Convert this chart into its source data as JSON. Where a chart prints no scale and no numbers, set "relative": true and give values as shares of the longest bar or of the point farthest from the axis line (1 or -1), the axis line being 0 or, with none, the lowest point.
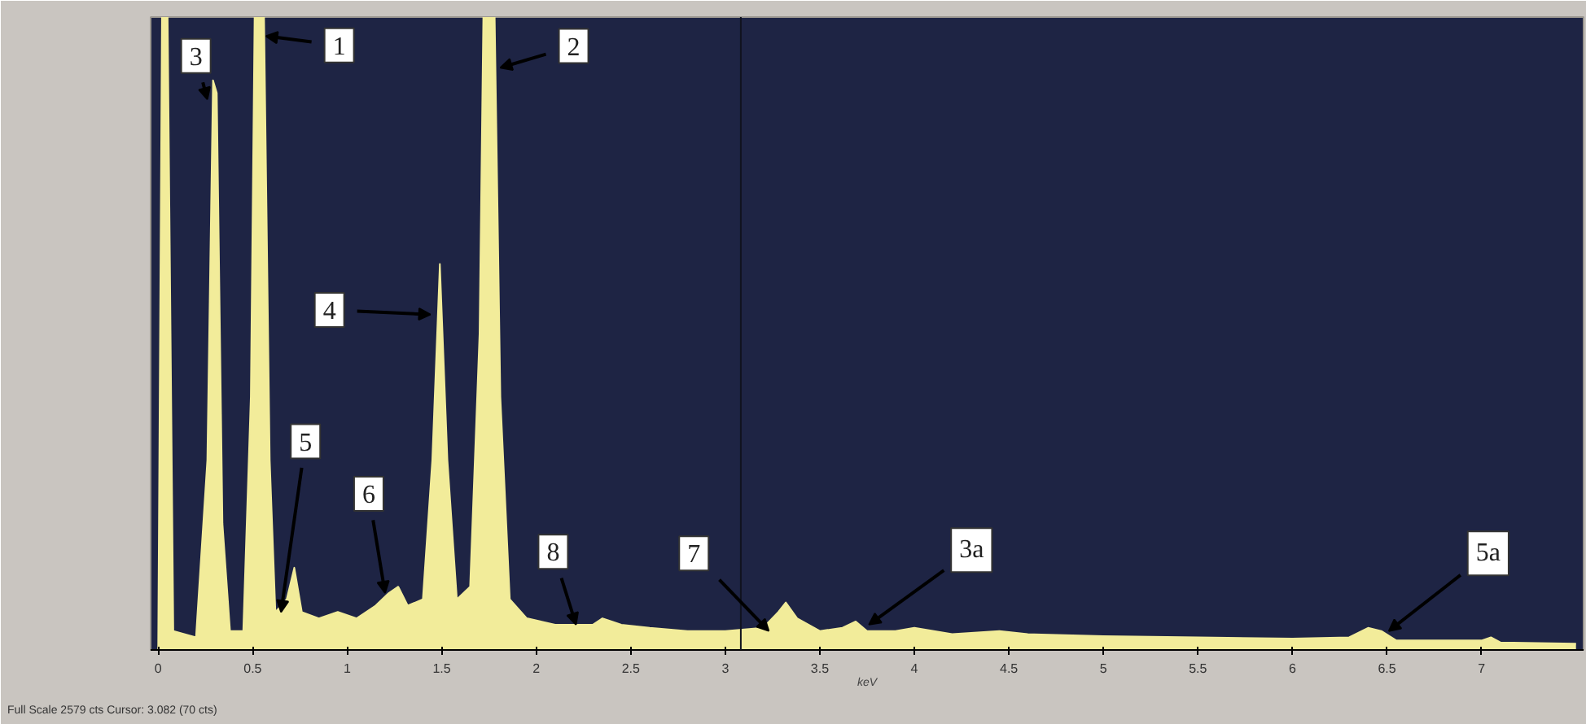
{
  "chart_data": {
    "type": "area",
    "relative": true,
    "xlabel": "keV",
    "color": "#f2ec9a",
    "grid": false,
    "x": [
      0,
      0.02,
      0.05,
      0.08,
      0.2,
      0.26,
      0.29,
      0.31,
      0.34,
      0.38,
      0.45,
      0.49,
      0.51,
      0.56,
      0.59,
      0.62,
      0.68,
      0.72,
      0.76,
      0.85,
      0.95,
      1.05,
      1.15,
      1.22,
      1.27,
      1.32,
      1.4,
      1.45,
      1.49,
      1.53,
      1.58,
      1.65,
      1.7,
      1.72,
      1.78,
      1.81,
      1.86,
      1.95,
      2.1,
      2.3,
      2.35,
      2.45,
      2.6,
      2.8,
      3.0,
      3.2,
      3.28,
      3.32,
      3.38,
      3.5,
      3.62,
      3.69,
      3.75,
      3.9,
      4.0,
      4.2,
      4.45,
      4.6,
      5.0,
      5.5,
      6.0,
      6.3,
      6.4,
      6.47,
      6.55,
      7.0,
      7.05,
      7.1,
      7.5
    ],
    "values": [
      0,
      1,
      1,
      0.03,
      0.02,
      0.3,
      0.9,
      0.88,
      0.2,
      0.03,
      0.03,
      0.4,
      1,
      1,
      0.3,
      0.06,
      0.08,
      0.13,
      0.06,
      0.05,
      0.06,
      0.05,
      0.07,
      0.09,
      0.1,
      0.07,
      0.08,
      0.3,
      0.61,
      0.3,
      0.08,
      0.1,
      0.5,
      1,
      1,
      0.4,
      0.08,
      0.05,
      0.04,
      0.04,
      0.05,
      0.04,
      0.035,
      0.03,
      0.03,
      0.035,
      0.06,
      0.075,
      0.05,
      0.03,
      0.035,
      0.045,
      0.03,
      0.03,
      0.035,
      0.025,
      0.03,
      0.025,
      0.022,
      0.02,
      0.018,
      0.02,
      0.035,
      0.03,
      0.015,
      0.015,
      0.02,
      0.012,
      0.01
    ],
    "xlim": [
      -0.04,
      7.54
    ],
    "xticks": [
      0,
      0.5,
      1,
      1.5,
      2,
      2.5,
      3,
      3.5,
      4,
      4.5,
      5,
      5.5,
      6,
      6.5,
      7
    ],
    "ref_lines": [
      {
        "axis": "x",
        "value": 3.082,
        "color": "#10131f"
      }
    ],
    "annotations": [
      {
        "text": "1",
        "x": 0.57,
        "y": 0.97
      },
      {
        "text": "2",
        "x": 1.81,
        "y": 0.92
      },
      {
        "text": "3",
        "x": 0.26,
        "y": 0.87
      },
      {
        "text": "4",
        "x": 1.44,
        "y": 0.53
      },
      {
        "text": "5",
        "x": 0.65,
        "y": 0.06
      },
      {
        "text": "6",
        "x": 1.2,
        "y": 0.09
      },
      {
        "text": "8",
        "x": 2.21,
        "y": 0.04
      },
      {
        "text": "7",
        "x": 3.23,
        "y": 0.03
      },
      {
        "text": "3a",
        "x": 3.76,
        "y": 0.04
      },
      {
        "text": "5a",
        "x": 6.51,
        "y": 0.03
      },
      "Full Scale 2579 cts Cursor: 3.082 (70 cts)"
    ]
  }
}
